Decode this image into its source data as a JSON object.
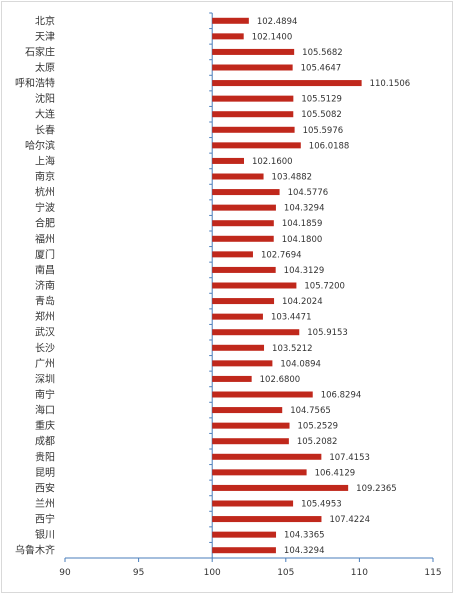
{
  "chart_data": {
    "type": "bar",
    "orientation": "horizontal",
    "categories": [
      "北京",
      "天津",
      "石家庄",
      "太原",
      "呼和浩特",
      "沈阳",
      "大连",
      "长春",
      "哈尔滨",
      "上海",
      "南京",
      "杭州",
      "宁波",
      "合肥",
      "福州",
      "厦门",
      "南昌",
      "济南",
      "青岛",
      "郑州",
      "武汉",
      "长沙",
      "广州",
      "深圳",
      "南宁",
      "海口",
      "重庆",
      "成都",
      "贵阳",
      "昆明",
      "西安",
      "兰州",
      "西宁",
      "银川",
      "乌鲁木齐"
    ],
    "values": [
      102.4894,
      102.14,
      105.5682,
      105.4647,
      110.1506,
      105.5129,
      105.5082,
      105.5976,
      106.0188,
      102.16,
      103.4882,
      104.5776,
      104.3294,
      104.1859,
      104.18,
      102.7694,
      104.3129,
      105.72,
      104.2024,
      103.4471,
      105.9153,
      103.5212,
      104.0894,
      102.68,
      106.8294,
      104.7565,
      105.2529,
      105.2082,
      107.4153,
      106.4129,
      109.2365,
      105.4953,
      107.4224,
      104.3365,
      104.3294
    ],
    "value_labels": [
      "102.4894",
      "102.1400",
      "105.5682",
      "105.4647",
      "110.1506",
      "105.5129",
      "105.5082",
      "105.5976",
      "106.0188",
      "102.1600",
      "103.4882",
      "104.5776",
      "104.3294",
      "104.1859",
      "104.1800",
      "102.7694",
      "104.3129",
      "105.7200",
      "104.2024",
      "103.4471",
      "105.9153",
      "103.5212",
      "104.0894",
      "102.6800",
      "106.8294",
      "104.7565",
      "105.2529",
      "105.2082",
      "107.4153",
      "106.4129",
      "109.2365",
      "105.4953",
      "107.4224",
      "104.3365",
      "104.3294"
    ],
    "baseline": 100,
    "xlim": [
      90,
      115
    ],
    "x_ticks": [
      "90",
      "95",
      "100",
      "105",
      "110",
      "115"
    ],
    "grid": false,
    "legend": "none",
    "bar_color": "#C0281C",
    "axis_color": "#4A7EBB"
  }
}
